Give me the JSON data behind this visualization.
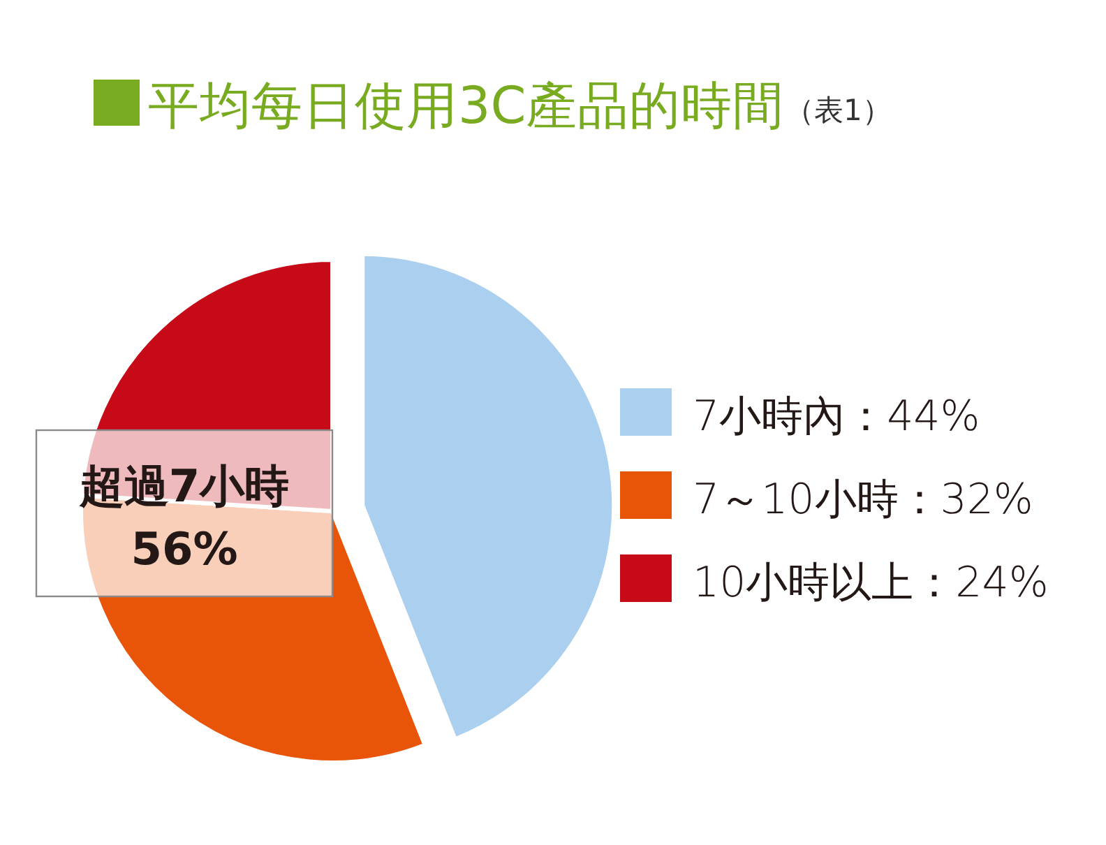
{
  "chart_data": {
    "type": "pie",
    "title": "平均每日使用3C產品的時間",
    "subtitle": "（表1）",
    "categories": [
      "7小時內：44%",
      "7～10小時：32%",
      "10小時以上：24%"
    ],
    "values": [
      44,
      32,
      24
    ],
    "colors": [
      "#abcfee",
      "#e85508",
      "#c70a17"
    ],
    "legend": "right",
    "annotations": [
      "超過7小時\n56%"
    ]
  }
}
